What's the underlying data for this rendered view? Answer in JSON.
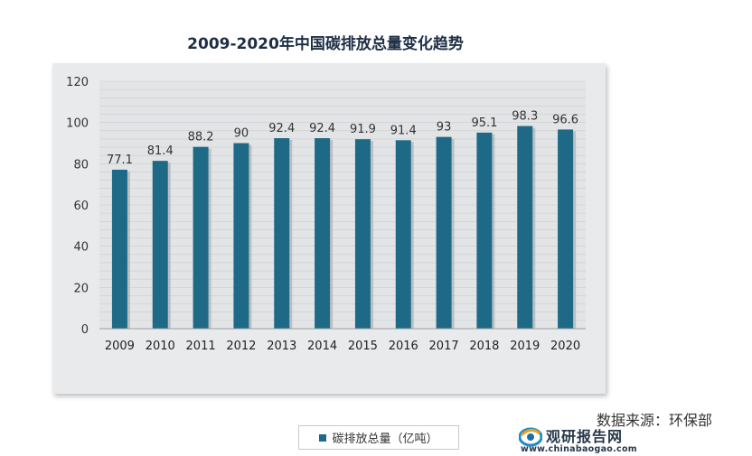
{
  "chart_data": {
    "type": "bar",
    "title": "2009-2020年中国碳排放总量变化趋势",
    "categories": [
      "2009",
      "2010",
      "2011",
      "2012",
      "2013",
      "2014",
      "2015",
      "2016",
      "2017",
      "2018",
      "2019",
      "2020"
    ],
    "series": [
      {
        "name": "碳排放总量（亿吨）",
        "values": [
          77.1,
          81.4,
          88.2,
          90,
          92.4,
          92.4,
          91.9,
          91.4,
          93,
          95.1,
          98.3,
          96.6
        ]
      }
    ],
    "value_labels": [
      "77.1",
      "81.4",
      "88.2",
      "90",
      "92.4",
      "92.4",
      "91.9",
      "91.4",
      "93",
      "95.1",
      "98.3",
      "96.6"
    ],
    "ylim": [
      0,
      120
    ],
    "yticks": [
      "0",
      "20",
      "40",
      "60",
      "80",
      "100",
      "120"
    ],
    "grid": true,
    "legend_position": "bottom-center",
    "bar_color": "#1e6a86"
  },
  "logo": {
    "name": "观研报告网",
    "url": "www.chinabaogao.com"
  },
  "source": "数据来源：环保部"
}
